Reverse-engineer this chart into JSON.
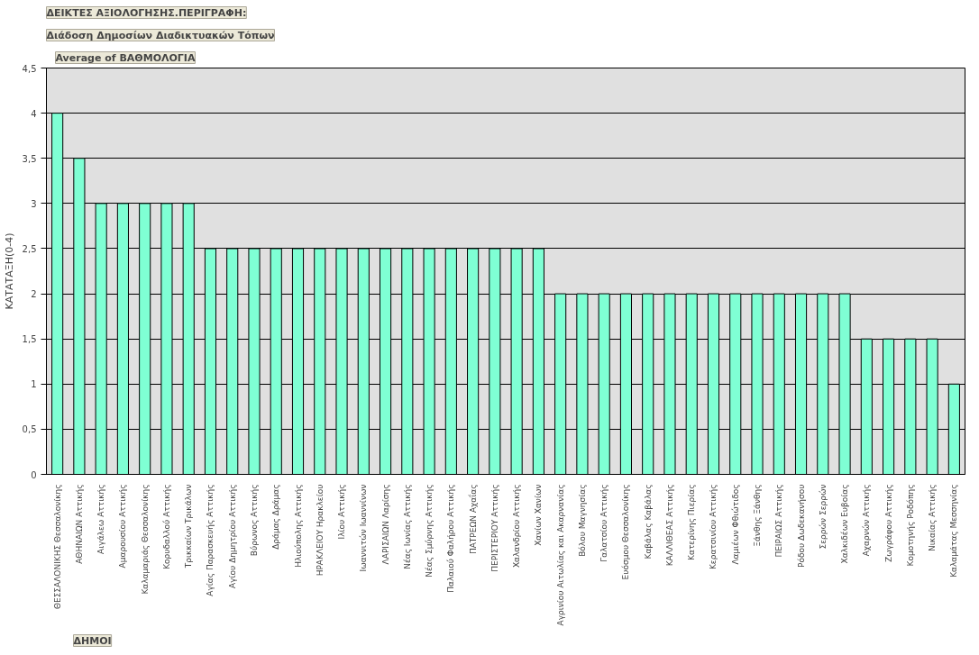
{
  "chart_data": {
    "type": "bar",
    "title": "ΔΕΙΚΤΕΣ ΑΞΙΟΛΟΓΗΣΗΣ.ΠΕΡΙΓΡΑΦΗ:",
    "subtitle": "Διάδοση Δημοσίων Διαδικτυακών Τόπων",
    "xlabel": "ΔΗΜΟΙ",
    "ylabel": "ΚΑΤΑΤΑΞΗ(0-4)",
    "annotations": [
      "Average of ΒΑΘΜΟΛΟΓΙΑ"
    ],
    "categories": [
      "ΘΕΣΣΑΛΟΝΙΚΗΣ Θεσσαλονίκης",
      "ΑΘΗΝΑΙΩΝ Αττικής",
      "Αιγάλεω Αττικής",
      "Αμαρουσίου Αττικής",
      "Καλαμαριάς Θεσσαλονίκης",
      "Κορυδαλλού Αττικής",
      "Τρικκαίων Τρικάλων",
      "Αγίας Παρασκευής Αττικής",
      "Αγίου Δημητρίου Αττικής",
      "Βύρωνος Αττικής",
      "Δράμας Δράμας",
      "Ηλιούπολης Αττικής",
      "ΗΡΑΚΛΕΙΟΥ Ηρακλείου",
      "Ιλίου Αττικής",
      "Ιωαννιτών Ιωαννίνων",
      "ΛΑΡΙΣΑΙΩΝ Λαρίσης",
      "Νέας Ιωνίας Αττικής",
      "Νέας Σμύρνης Αττικής",
      "Παλαιού Φαλήρου Αττικής",
      "ΠΑΤΡΕΩΝ Αχαΐας",
      "ΠΕΡΙΣΤΕΡΙΟΥ Αττικής",
      "Χαλανδρίου Αττικής",
      "Χανίων Χανίων",
      "Αγρινίου Αιτωλίας και Ακαρνανίας",
      "Βόλου Μαγνησίας",
      "Γαλατσίου Αττικής",
      "Ευόσμου Θεσσαλονίκης",
      "Καβάλας Καβάλας",
      "ΚΑΛΛΙΘΕΑΣ Αττικής",
      "Κατερίνης Πιερίας",
      "Κερατσινίου Αττικής",
      "Λαμιέων Φθιώτιδος",
      "Ξάνθης Ξάνθης",
      "ΠΕΙΡΑΙΩΣ Αττικής",
      "Ρόδου Δωδεκανήσου",
      "Σερρών Σερρών",
      "Χαλκιδέων Ευβοίας",
      "Αχαρνών Αττικής",
      "Ζωγράφου Αττικής",
      "Κομοτηνής Ροδόπης",
      "Νικαίας Αττικής",
      "Καλαμάτας Μεσσηνίας"
    ],
    "values": [
      4,
      3.5,
      3,
      3,
      3,
      3,
      3,
      2.5,
      2.5,
      2.5,
      2.5,
      2.5,
      2.5,
      2.5,
      2.5,
      2.5,
      2.5,
      2.5,
      2.5,
      2.5,
      2.5,
      2.5,
      2.5,
      2,
      2,
      2,
      2,
      2,
      2,
      2,
      2,
      2,
      2,
      2,
      2,
      2,
      2,
      1.5,
      1.5,
      1.5,
      1.5,
      1
    ],
    "color": "#7fffd4",
    "ylim": [
      0,
      4.5
    ],
    "yticks": [
      {
        "value": 0,
        "label": "0"
      },
      {
        "value": 0.5,
        "label": "0,5"
      },
      {
        "value": 1,
        "label": "1"
      },
      {
        "value": 1.5,
        "label": "1,5"
      },
      {
        "value": 2,
        "label": "2"
      },
      {
        "value": 2.5,
        "label": "2,5"
      },
      {
        "value": 3,
        "label": "3"
      },
      {
        "value": 3.5,
        "label": "3,5"
      },
      {
        "value": 4,
        "label": "4"
      },
      {
        "value": 4.5,
        "label": "4,5"
      }
    ],
    "grid": "y"
  }
}
